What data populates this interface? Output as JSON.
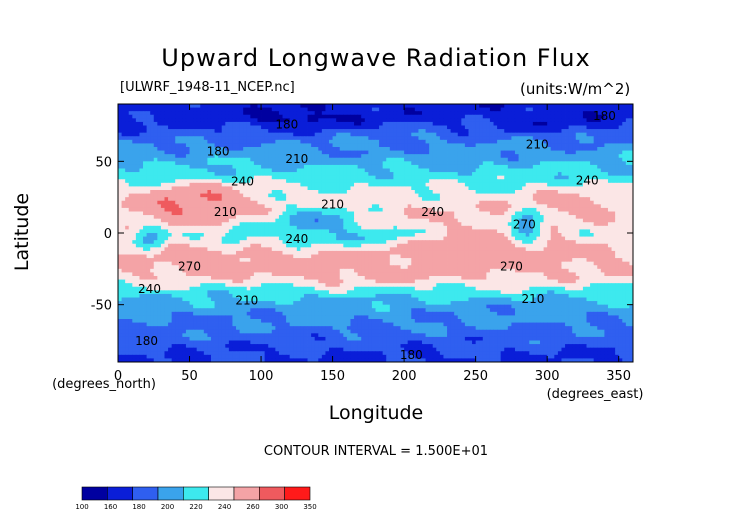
{
  "chart_data": {
    "type": "heatmap",
    "title": "Upward Longwave Radiation Flux",
    "source_label": "[ULWRF_1948-11_NCEP.nc]",
    "units_label": "(units:W/m^2)",
    "xlabel": "Longitude",
    "ylabel": "Latitude",
    "x_unit_label": "(degrees_east)",
    "y_unit_label": "(degrees_north)",
    "contour_interval_text": "CONTOUR INTERVAL = 1.500E+01",
    "xlim": [
      0,
      360
    ],
    "ylim": [
      -90,
      90
    ],
    "x_ticks": [
      0,
      50,
      100,
      150,
      200,
      250,
      300,
      350
    ],
    "y_ticks": [
      -50,
      0,
      50
    ],
    "colorbar": {
      "levels": [
        100,
        160,
        180,
        200,
        220,
        240,
        260,
        300,
        350
      ],
      "colors": [
        "#0000a0",
        "#0a1ed8",
        "#2f5ff0",
        "#3aa3ec",
        "#3de9ee",
        "#fbe6e6",
        "#f4a3a6",
        "#ef5a5e",
        "#ff1a1a"
      ]
    },
    "contour_labels": [
      {
        "text": "180",
        "lon": 70,
        "lat": 54
      },
      {
        "text": "240",
        "lon": 87,
        "lat": 33
      },
      {
        "text": "210",
        "lon": 125,
        "lat": 49
      },
      {
        "text": "210",
        "lon": 150,
        "lat": 17
      },
      {
        "text": "240",
        "lon": 220,
        "lat": 12
      },
      {
        "text": "210",
        "lon": 75,
        "lat": 12
      },
      {
        "text": "240",
        "lon": 125,
        "lat": -7
      },
      {
        "text": "270",
        "lon": 50,
        "lat": -26
      },
      {
        "text": "240",
        "lon": 22,
        "lat": -42
      },
      {
        "text": "210",
        "lon": 90,
        "lat": -50
      },
      {
        "text": "180",
        "lon": 20,
        "lat": -78
      },
      {
        "text": "180",
        "lon": 205,
        "lat": -88
      },
      {
        "text": "270",
        "lon": 275,
        "lat": -26
      },
      {
        "text": "210",
        "lon": 290,
        "lat": -49
      },
      {
        "text": "240",
        "lon": 328,
        "lat": 34
      },
      {
        "text": "210",
        "lon": 293,
        "lat": 59
      },
      {
        "text": "180",
        "lon": 340,
        "lat": 79
      },
      {
        "text": "180",
        "lon": 118,
        "lat": 73
      },
      {
        "text": "270",
        "lon": 284,
        "lat": 3
      }
    ],
    "bands": [
      {
        "lat": 88,
        "value": 168
      },
      {
        "lat": 80,
        "value": 172
      },
      {
        "lat": 72,
        "value": 182
      },
      {
        "lat": 64,
        "value": 198
      },
      {
        "lat": 56,
        "value": 208
      },
      {
        "lat": 48,
        "value": 218
      },
      {
        "lat": 40,
        "value": 228
      },
      {
        "lat": 32,
        "value": 240
      },
      {
        "lat": 24,
        "value": 250
      },
      {
        "lat": 16,
        "value": 256
      },
      {
        "lat": 8,
        "value": 250
      },
      {
        "lat": 0,
        "value": 245
      },
      {
        "lat": -8,
        "value": 255
      },
      {
        "lat": -16,
        "value": 262
      },
      {
        "lat": -24,
        "value": 262
      },
      {
        "lat": -32,
        "value": 252
      },
      {
        "lat": -40,
        "value": 232
      },
      {
        "lat": -48,
        "value": 216
      },
      {
        "lat": -56,
        "value": 206
      },
      {
        "lat": -64,
        "value": 200
      },
      {
        "lat": -72,
        "value": 192
      },
      {
        "lat": -80,
        "value": 184
      },
      {
        "lat": -88,
        "value": 178
      }
    ],
    "features": [
      {
        "lon": 60,
        "lat": 22,
        "rlon": 28,
        "rlat": 11,
        "value": 305
      },
      {
        "lon": 40,
        "lat": 18,
        "rlon": 25,
        "rlat": 10,
        "value": 300
      },
      {
        "lon": 255,
        "lat": -10,
        "rlon": 60,
        "rlat": 18,
        "value": 275
      },
      {
        "lon": 160,
        "lat": -24,
        "rlon": 60,
        "rlat": 10,
        "value": 272
      },
      {
        "lon": 65,
        "lat": -20,
        "rlon": 45,
        "rlat": 10,
        "value": 272
      },
      {
        "lon": 320,
        "lat": 20,
        "rlon": 40,
        "rlat": 10,
        "value": 268
      },
      {
        "lon": 140,
        "lat": 6,
        "rlon": 30,
        "rlat": 12,
        "value": 205
      },
      {
        "lon": 285,
        "lat": 5,
        "rlon": 12,
        "rlat": 10,
        "value": 202
      },
      {
        "lon": 22,
        "lat": -3,
        "rlon": 10,
        "rlat": 8,
        "value": 208
      },
      {
        "lon": 80,
        "lat": -5,
        "rlon": 10,
        "rlat": 6,
        "value": 218
      },
      {
        "lon": 170,
        "lat": -2,
        "rlon": 40,
        "rlat": 6,
        "value": 225
      },
      {
        "lon": 130,
        "lat": 80,
        "rlon": 35,
        "rlat": 6,
        "value": 150
      },
      {
        "lon": 300,
        "lat": 78,
        "rlon": 30,
        "rlat": 6,
        "value": 165
      },
      {
        "lon": 200,
        "lat": 62,
        "rlon": 50,
        "rlat": 10,
        "value": 200
      },
      {
        "lon": 240,
        "lat": -56,
        "rlon": 60,
        "rlat": 6,
        "value": 205
      },
      {
        "lon": 60,
        "lat": -60,
        "rlon": 40,
        "rlat": 6,
        "value": 198
      }
    ]
  }
}
